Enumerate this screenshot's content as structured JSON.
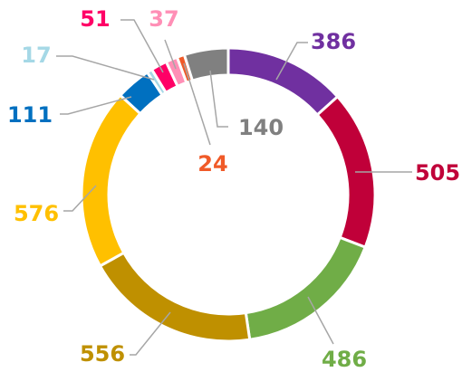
{
  "chart_data": {
    "type": "donut",
    "values": [
      386,
      505,
      486,
      556,
      576,
      111,
      17,
      51,
      37,
      24,
      140
    ],
    "colors": [
      "#7030a0",
      "#c00039",
      "#70ad47",
      "#bf9000",
      "#ffc000",
      "#0070c0",
      "#a5d8e6",
      "#ff0066",
      "#ff8fb6",
      "#f05a28",
      "#808080"
    ]
  }
}
